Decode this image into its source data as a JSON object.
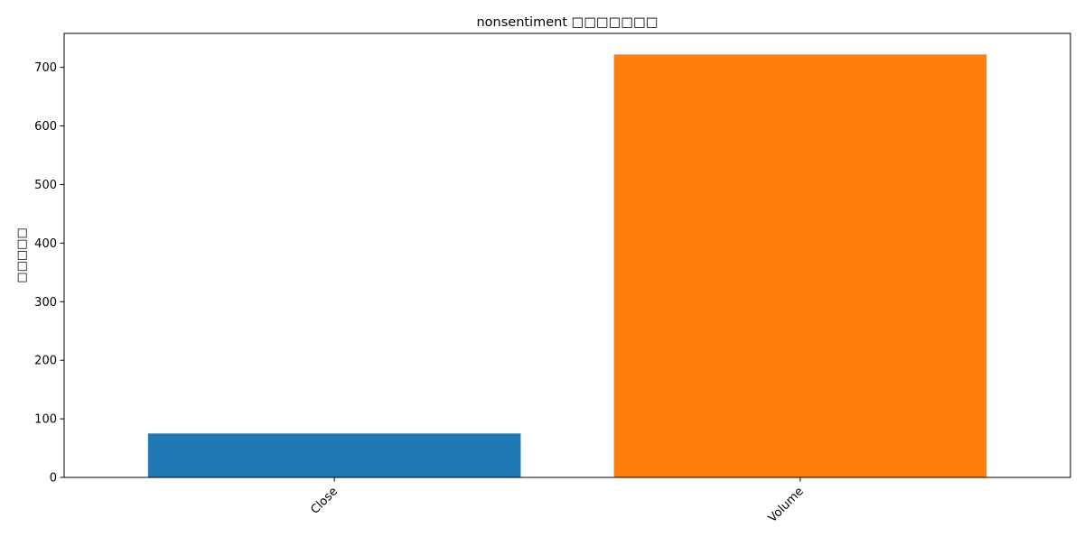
{
  "chart_data": {
    "type": "bar",
    "title": "nonsentiment □□□□□□□",
    "xlabel": "",
    "ylabel": "□□□□□",
    "categories": [
      "Close",
      "Volume"
    ],
    "values": [
      75,
      722
    ],
    "colors": [
      "#1f77b4",
      "#ff7f0e"
    ],
    "ylim": [
      0,
      758
    ],
    "yticks": [
      0,
      100,
      200,
      300,
      400,
      500,
      600,
      700
    ],
    "grid": false,
    "x_tick_rotation": 45
  }
}
